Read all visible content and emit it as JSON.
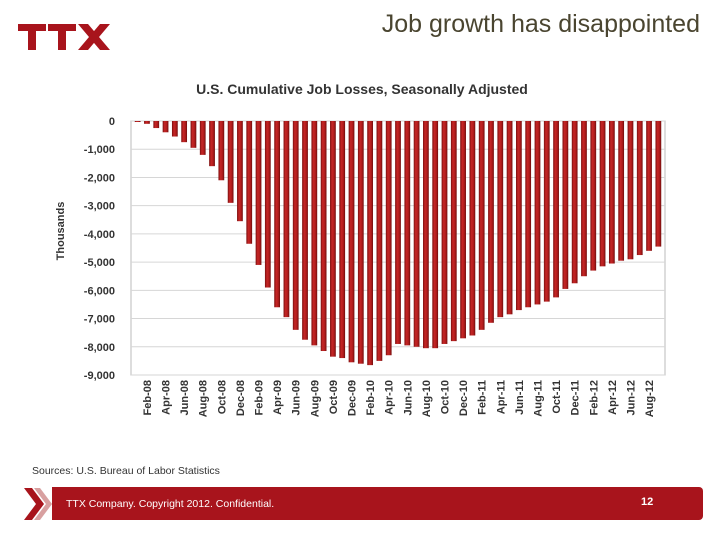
{
  "slide": {
    "title": "Job growth has disappointed",
    "logo_text": "TTX",
    "source": "Sources: U.S. Bureau of Labor Statistics",
    "footer": "TTX Company. Copyright 2012. Confidential.",
    "page_number": "12"
  },
  "colors": {
    "brand": "#a8141c",
    "bar": "#b01c1c",
    "bar_dark": "#7a0e0e",
    "title": "#4a4530"
  },
  "chart_data": {
    "type": "bar",
    "title": "U.S. Cumulative Job Losses, Seasonally Adjusted",
    "ylabel": "Thousands",
    "ylim": [
      -9000,
      0
    ],
    "yticks": [
      0,
      -1000,
      -2000,
      -3000,
      -4000,
      -5000,
      -6000,
      -7000,
      -8000,
      -9000
    ],
    "ytick_labels": [
      "0",
      "-1,000",
      "-2,000",
      "-3,000",
      "-4,000",
      "-5,000",
      "-6,000",
      "-7,000",
      "-8,000",
      "-9,000"
    ],
    "grid": true,
    "xtick_labels": [
      "Feb-08",
      "Apr-08",
      "Jun-08",
      "Aug-08",
      "Oct-08",
      "Dec-08",
      "Feb-09",
      "Apr-09",
      "Jun-09",
      "Aug-09",
      "Oct-09",
      "Dec-09",
      "Feb-10",
      "Apr-10",
      "Jun-10",
      "Aug-10",
      "Oct-10",
      "Dec-10",
      "Feb-11",
      "Apr-11",
      "Jun-11",
      "Aug-11",
      "Oct-11",
      "Dec-11",
      "Feb-12",
      "Apr-12",
      "Jun-12",
      "Aug-12"
    ],
    "categories": [
      "Jan-08",
      "Feb-08",
      "Mar-08",
      "Apr-08",
      "May-08",
      "Jun-08",
      "Jul-08",
      "Aug-08",
      "Sep-08",
      "Oct-08",
      "Nov-08",
      "Dec-08",
      "Jan-09",
      "Feb-09",
      "Mar-09",
      "Apr-09",
      "May-09",
      "Jun-09",
      "Jul-09",
      "Aug-09",
      "Sep-09",
      "Oct-09",
      "Nov-09",
      "Dec-09",
      "Jan-10",
      "Feb-10",
      "Mar-10",
      "Apr-10",
      "May-10",
      "Jun-10",
      "Jul-10",
      "Aug-10",
      "Sep-10",
      "Oct-10",
      "Nov-10",
      "Dec-10",
      "Jan-11",
      "Feb-11",
      "Mar-11",
      "Apr-11",
      "May-11",
      "Jun-11",
      "Jul-11",
      "Aug-11",
      "Sep-11",
      "Oct-11",
      "Nov-11",
      "Dec-11",
      "Jan-12",
      "Feb-12",
      "Mar-12",
      "Apr-12",
      "May-12",
      "Jun-12",
      "Jul-12",
      "Aug-12",
      "Sep-12"
    ],
    "values": [
      -10,
      -100,
      -250,
      -400,
      -550,
      -750,
      -950,
      -1200,
      -1600,
      -2100,
      -2900,
      -3550,
      -4350,
      -5100,
      -5900,
      -6600,
      -6950,
      -7400,
      -7750,
      -7950,
      -8150,
      -8350,
      -8400,
      -8550,
      -8600,
      -8650,
      -8500,
      -8300,
      -7900,
      -7950,
      -8000,
      -8050,
      -8050,
      -7900,
      -7800,
      -7700,
      -7600,
      -7400,
      -7150,
      -6950,
      -6850,
      -6700,
      -6600,
      -6500,
      -6400,
      -6250,
      -5950,
      -5750,
      -5500,
      -5300,
      -5150,
      -5050,
      -4950,
      -4900,
      -4750,
      -4600,
      -4450
    ]
  }
}
